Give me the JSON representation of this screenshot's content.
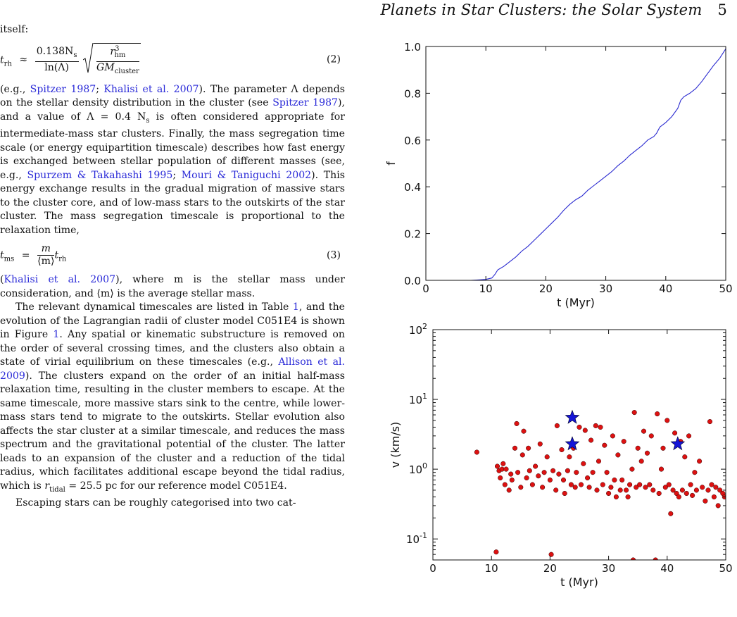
{
  "header": {
    "running_title": "Planets in Star Clusters: the Solar System",
    "page_number": "5"
  },
  "text": {
    "p0": "itself:",
    "eq2_lhs": "t",
    "eq2_lhs_sub": "rh",
    "eq2_approx": "≈",
    "eq2_num": "0.138N",
    "eq2_num_sub": "s",
    "eq2_den": "ln(Λ)",
    "eq2_rad_num": "r",
    "eq2_rad_num_sup": "3",
    "eq2_rad_num_sub": "hm",
    "eq2_rad_den": "GM",
    "eq2_rad_den_sub": "cluster",
    "eq2_number": "(2)",
    "p1_open": "(e.g., ",
    "cite_spitzer1987": "Spitzer 1987",
    "sep": "; ",
    "cite_khalisi2007": "Khalisi et al. 2007",
    "p1_a": "). The parameter Λ depends on the stellar density distribution in the cluster (see ",
    "p1_b": "), and a value of Λ = 0.4 N",
    "p1_b_sub": "s",
    "p1_c": " is often considered appropriate for intermediate-mass star clusters. Finally, the mass segregation time scale (or energy equipartition timescale) describes how fast energy is exchanged between stellar population of different masses (see, e.g., ",
    "cite_spurzem": "Spurzem & Takahashi 1995",
    "cite_mouri": "Mouri & Taniguchi 2002",
    "p1_d": "). This energy exchange results in the gradual migration of massive stars to the cluster core, and of low-mass stars to the outskirts of the star cluster. The mass segregation timescale is proportional to the relaxation time,",
    "eq3_lhs": "t",
    "eq3_lhs_sub": "ms",
    "eq3_eq": "=",
    "eq3_num": "m",
    "eq3_den": "⟨m⟩",
    "eq3_rhs": "t",
    "eq3_rhs_sub": "rh",
    "eq3_number": "(3)",
    "p2_open": "(",
    "p2_a": "), where m is the stellar mass under consideration, and ⟨m⟩ is the average stellar mass.",
    "p3_a": "The relevant dynamical timescales are listed in Table ",
    "ref_table1": "1",
    "p3_b": ", and the evolution of the Lagrangian radii of cluster model C051E4 is shown in Figure ",
    "ref_fig1": "1",
    "p3_c": ". Any spatial or kinematic substructure is removed on the order of several crossing times, and the clusters also obtain a state of virial equilibrium on these timescales (e.g., ",
    "cite_allison": "Allison et al. 2009",
    "p3_d": "). The clusters expand on the order of an initial half-mass relaxation time, resulting in the cluster members to escape. At the same timescale, more massive stars sink to the centre, while lower-mass stars tend to migrate to the outskirts. Stellar evolution also affects the star cluster at a similar timescale, and reduces the mass spectrum and the gravitational potential of the cluster. The latter leads to an expansion of the cluster and a reduction of the tidal radius, which facilitates additional escape beyond the tidal radius, which is ",
    "p3_rt": "r",
    "p3_rt_sub": "tidal",
    "p3_e": " = 25.5 pc for our reference model C051E4.",
    "p4": "Escaping stars can be roughly categorised into two cat-"
  },
  "colors": {
    "citation": "#2b2bd8",
    "line": "#2a2ad0",
    "marker_red": "#dd1111",
    "marker_blue": "#1515d8"
  },
  "chart_data": [
    {
      "type": "line",
      "xlabel": "t (Myr)",
      "ylabel": "f",
      "xlim": [
        0,
        50
      ],
      "ylim": [
        0.0,
        1.0
      ],
      "xticks": [
        "0",
        "10",
        "20",
        "30",
        "40",
        "50"
      ],
      "yticks": [
        "0.0",
        "0.2",
        "0.4",
        "0.6",
        "0.8",
        "1.0"
      ],
      "grid": false,
      "x": [
        0,
        7.5,
        9,
        10,
        11,
        11.5,
        12,
        13,
        14,
        15,
        16,
        17,
        18,
        19,
        20,
        21,
        22,
        23,
        24,
        25,
        26,
        27,
        28,
        29,
        30,
        31,
        32,
        33,
        34,
        35,
        36,
        37,
        38,
        38.5,
        39,
        40,
        41,
        42,
        42.5,
        43,
        44,
        45,
        46,
        47,
        48,
        49,
        50
      ],
      "y": [
        0,
        0,
        0.002,
        0.004,
        0.01,
        0.025,
        0.045,
        0.06,
        0.08,
        0.1,
        0.125,
        0.145,
        0.17,
        0.195,
        0.22,
        0.245,
        0.27,
        0.3,
        0.325,
        0.345,
        0.36,
        0.385,
        0.405,
        0.425,
        0.445,
        0.465,
        0.49,
        0.51,
        0.535,
        0.555,
        0.575,
        0.6,
        0.615,
        0.63,
        0.655,
        0.675,
        0.7,
        0.735,
        0.77,
        0.785,
        0.8,
        0.82,
        0.85,
        0.885,
        0.92,
        0.95,
        0.99
      ]
    },
    {
      "type": "scatter",
      "xlabel": "t (Myr)",
      "ylabel": "v (km/s)",
      "xlim": [
        0,
        50
      ],
      "ylim": [
        0.05,
        100
      ],
      "yscale": "log",
      "xticks": [
        "0",
        "10",
        "20",
        "30",
        "40",
        "50"
      ],
      "yticks": [
        {
          "base": "10",
          "exp": "2",
          "value": 100
        },
        {
          "base": "10",
          "exp": "1",
          "value": 10
        },
        {
          "base": "10",
          "exp": "0",
          "value": 1
        },
        {
          "base": "10",
          "exp": "-1",
          "value": 0.1
        }
      ],
      "grid": false,
      "series": [
        {
          "marker": "circle",
          "points": [
            [
              7.5,
              1.75
            ],
            [
              10.8,
              0.065
            ],
            [
              11,
              1.1
            ],
            [
              11.3,
              0.95
            ],
            [
              11.5,
              0.75
            ],
            [
              11.8,
              1.0
            ],
            [
              12,
              1.2
            ],
            [
              12.3,
              0.6
            ],
            [
              12.5,
              1.0
            ],
            [
              13,
              0.5
            ],
            [
              13.3,
              0.85
            ],
            [
              13.5,
              0.7
            ],
            [
              14,
              2.0
            ],
            [
              14.3,
              4.5
            ],
            [
              14.5,
              0.9
            ],
            [
              15,
              0.55
            ],
            [
              15.3,
              1.6
            ],
            [
              15.5,
              3.5
            ],
            [
              16,
              0.75
            ],
            [
              16.3,
              2.0
            ],
            [
              16.5,
              0.95
            ],
            [
              17,
              0.6
            ],
            [
              17.5,
              1.1
            ],
            [
              18,
              0.8
            ],
            [
              18.3,
              2.3
            ],
            [
              18.7,
              0.55
            ],
            [
              19,
              0.9
            ],
            [
              19.5,
              1.5
            ],
            [
              20,
              0.7
            ],
            [
              20.2,
              0.06
            ],
            [
              20.5,
              0.95
            ],
            [
              21,
              0.5
            ],
            [
              21.2,
              4.2
            ],
            [
              21.5,
              0.85
            ],
            [
              22,
              1.9
            ],
            [
              22.3,
              0.7
            ],
            [
              22.5,
              0.45
            ],
            [
              23,
              0.95
            ],
            [
              23.3,
              1.5
            ],
            [
              23.6,
              0.6
            ],
            [
              24,
              2.0
            ],
            [
              24.3,
              0.55
            ],
            [
              24.5,
              0.9
            ],
            [
              25,
              4.0
            ],
            [
              25.3,
              0.6
            ],
            [
              25.7,
              1.2
            ],
            [
              26,
              3.6
            ],
            [
              26.4,
              0.75
            ],
            [
              26.7,
              0.55
            ],
            [
              27,
              2.6
            ],
            [
              27.3,
              0.9
            ],
            [
              27.8,
              4.2
            ],
            [
              28,
              0.5
            ],
            [
              28.3,
              1.3
            ],
            [
              28.6,
              4.0
            ],
            [
              29,
              0.6
            ],
            [
              29.3,
              2.2
            ],
            [
              29.7,
              0.9
            ],
            [
              30,
              0.45
            ],
            [
              30.4,
              0.55
            ],
            [
              30.7,
              3.0
            ],
            [
              31,
              0.7
            ],
            [
              31.3,
              0.4
            ],
            [
              31.6,
              1.6
            ],
            [
              32,
              0.5
            ],
            [
              32.3,
              0.7
            ],
            [
              32.6,
              2.5
            ],
            [
              33,
              0.5
            ],
            [
              33.3,
              0.4
            ],
            [
              33.6,
              0.6
            ],
            [
              34,
              1.0
            ],
            [
              34.2,
              0.05
            ],
            [
              34.4,
              6.5
            ],
            [
              34.7,
              0.55
            ],
            [
              35,
              2.0
            ],
            [
              35.3,
              0.6
            ],
            [
              35.6,
              1.3
            ],
            [
              36,
              3.5
            ],
            [
              36.3,
              0.55
            ],
            [
              36.6,
              1.7
            ],
            [
              37,
              0.6
            ],
            [
              37.3,
              3.0
            ],
            [
              37.6,
              0.5
            ],
            [
              38,
              0.05
            ],
            [
              38.3,
              6.2
            ],
            [
              38.6,
              0.45
            ],
            [
              39,
              1.0
            ],
            [
              39.3,
              2.0
            ],
            [
              39.7,
              0.55
            ],
            [
              40,
              5.0
            ],
            [
              40.3,
              0.6
            ],
            [
              40.6,
              0.23
            ],
            [
              41,
              0.5
            ],
            [
              41.3,
              3.3
            ],
            [
              41.6,
              0.45
            ],
            [
              42,
              0.4
            ],
            [
              42.3,
              2.5
            ],
            [
              42.6,
              0.5
            ],
            [
              43,
              1.5
            ],
            [
              43.3,
              0.45
            ],
            [
              43.7,
              3.0
            ],
            [
              44,
              0.6
            ],
            [
              44.3,
              0.42
            ],
            [
              44.7,
              0.9
            ],
            [
              45,
              0.5
            ],
            [
              45.5,
              1.3
            ],
            [
              46,
              0.55
            ],
            [
              46.5,
              0.35
            ],
            [
              47,
              0.5
            ],
            [
              47.3,
              4.8
            ],
            [
              47.6,
              0.6
            ],
            [
              48,
              0.4
            ],
            [
              48.3,
              0.55
            ],
            [
              48.7,
              0.3
            ],
            [
              49,
              0.5
            ],
            [
              49.5,
              0.45
            ],
            [
              49.8,
              0.4
            ]
          ]
        },
        {
          "marker": "star",
          "points": [
            [
              23.8,
              5.5
            ],
            [
              23.8,
              2.3
            ],
            [
              41.8,
              2.3
            ]
          ]
        }
      ]
    }
  ]
}
